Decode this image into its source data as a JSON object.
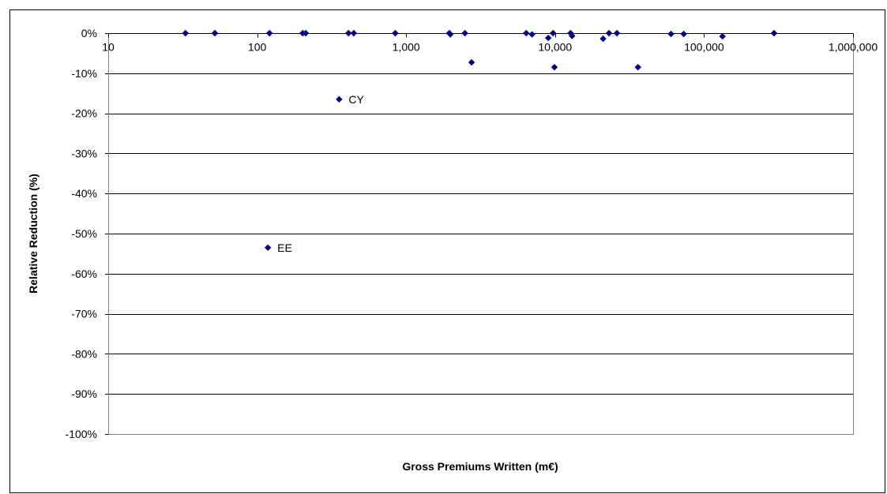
{
  "chart_data": {
    "type": "scatter",
    "title": "",
    "xlabel": "Gross Premiums Written (m€)",
    "ylabel": "Relative Reduction (%)",
    "xscale": "log",
    "xlim": [
      10,
      1000000
    ],
    "ylim": [
      -100,
      0
    ],
    "x_ticks": [
      {
        "value": 10,
        "label": "10"
      },
      {
        "value": 100,
        "label": "100"
      },
      {
        "value": 1000,
        "label": "1,000"
      },
      {
        "value": 10000,
        "label": "10,000"
      },
      {
        "value": 100000,
        "label": "100,000"
      },
      {
        "value": 1000000,
        "label": "1,000,000"
      }
    ],
    "y_ticks": [
      {
        "value": 0,
        "label": "0%"
      },
      {
        "value": -10,
        "label": "-10%"
      },
      {
        "value": -20,
        "label": "-20%"
      },
      {
        "value": -30,
        "label": "-30%"
      },
      {
        "value": -40,
        "label": "-40%"
      },
      {
        "value": -50,
        "label": "-50%"
      },
      {
        "value": -60,
        "label": "-60%"
      },
      {
        "value": -70,
        "label": "-70%"
      },
      {
        "value": -80,
        "label": "-80%"
      },
      {
        "value": -90,
        "label": "-90%"
      },
      {
        "value": -100,
        "label": "-100%"
      }
    ],
    "grid": {
      "horizontal": true,
      "vertical": false
    },
    "marker_color": "#000080",
    "points": [
      {
        "x": 33,
        "y": 0
      },
      {
        "x": 52,
        "y": 0
      },
      {
        "x": 118,
        "y": -53.5,
        "label": "EE"
      },
      {
        "x": 121,
        "y": 0
      },
      {
        "x": 202,
        "y": 0
      },
      {
        "x": 212,
        "y": 0
      },
      {
        "x": 355,
        "y": -16.5,
        "label": "CY"
      },
      {
        "x": 410,
        "y": 0
      },
      {
        "x": 445,
        "y": 0
      },
      {
        "x": 845,
        "y": 0
      },
      {
        "x": 1950,
        "y": 0
      },
      {
        "x": 1980,
        "y": -0.3
      },
      {
        "x": 2480,
        "y": 0
      },
      {
        "x": 2750,
        "y": -7.3
      },
      {
        "x": 6400,
        "y": 0
      },
      {
        "x": 7000,
        "y": -0.3
      },
      {
        "x": 9000,
        "y": -1.2
      },
      {
        "x": 9700,
        "y": 0
      },
      {
        "x": 9900,
        "y": -8.5
      },
      {
        "x": 12700,
        "y": 0
      },
      {
        "x": 13000,
        "y": -0.7
      },
      {
        "x": 21000,
        "y": -1.4
      },
      {
        "x": 23000,
        "y": 0
      },
      {
        "x": 26000,
        "y": 0
      },
      {
        "x": 36000,
        "y": -8.5
      },
      {
        "x": 60000,
        "y": -0.2
      },
      {
        "x": 73000,
        "y": -0.2
      },
      {
        "x": 133000,
        "y": -0.8
      },
      {
        "x": 295000,
        "y": 0
      }
    ]
  }
}
